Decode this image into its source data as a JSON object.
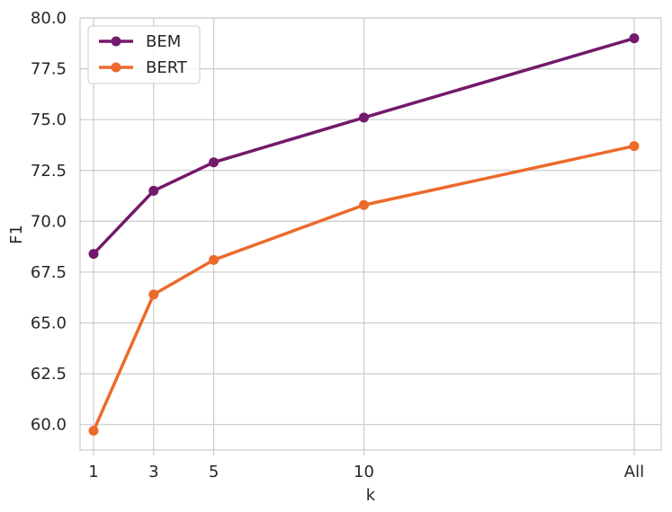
{
  "chart_data": {
    "type": "line",
    "x_ticks": [
      "1",
      "3",
      "5",
      "10",
      "All"
    ],
    "x_positions": [
      1,
      3,
      5,
      10,
      19
    ],
    "xlabel": "k",
    "ylabel": "F1",
    "ylim": [
      58.75,
      80.0
    ],
    "y_ticks": [
      "60.0",
      "62.5",
      "65.0",
      "67.5",
      "70.0",
      "72.5",
      "75.0",
      "77.5",
      "80.0"
    ],
    "grid": true,
    "legend_position": "top-left",
    "series": [
      {
        "name": "BEM",
        "color": "#74196b",
        "values": [
          68.4,
          71.5,
          72.9,
          75.1,
          79.0
        ]
      },
      {
        "name": "BERT",
        "color": "#ec6a2c",
        "values": [
          59.7,
          66.4,
          68.1,
          70.8,
          73.7
        ]
      }
    ]
  }
}
